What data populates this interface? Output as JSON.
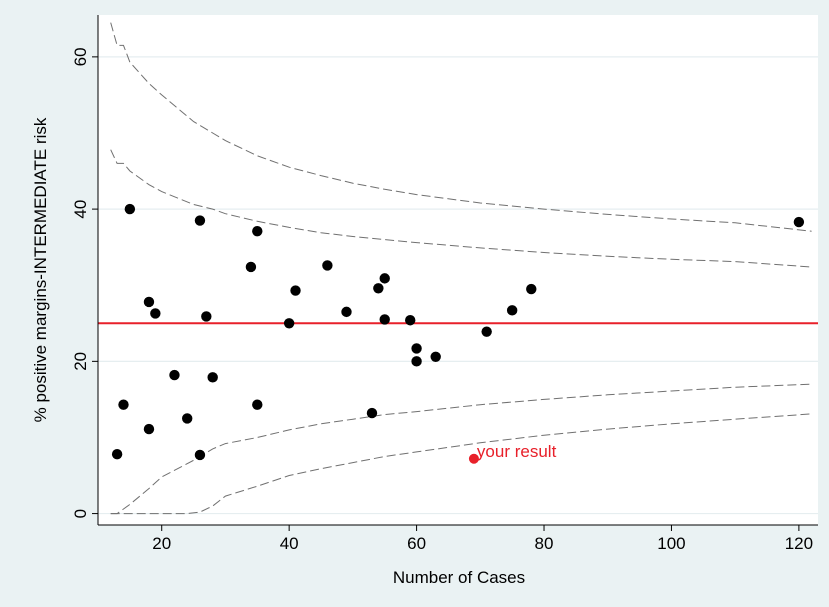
{
  "chart_data": {
    "type": "scatter",
    "xlabel": "Number of Cases",
    "ylabel": "% positive margins-INTERMEDIATE risk",
    "xlim": [
      10,
      123
    ],
    "ylim": [
      -1.5,
      65.5
    ],
    "x_ticks": [
      20,
      40,
      60,
      80,
      100,
      120
    ],
    "y_ticks": [
      0,
      20,
      40,
      60
    ],
    "grid": true,
    "reference_line": {
      "y": 25,
      "color": "#e8202a"
    },
    "points": [
      {
        "x": 13,
        "y": 7.8
      },
      {
        "x": 14,
        "y": 14.3
      },
      {
        "x": 15,
        "y": 40.0
      },
      {
        "x": 18,
        "y": 27.8
      },
      {
        "x": 18,
        "y": 11.1
      },
      {
        "x": 19,
        "y": 26.3
      },
      {
        "x": 22,
        "y": 18.2
      },
      {
        "x": 24,
        "y": 12.5
      },
      {
        "x": 26,
        "y": 38.5
      },
      {
        "x": 26,
        "y": 7.7
      },
      {
        "x": 27,
        "y": 25.9
      },
      {
        "x": 28,
        "y": 17.9
      },
      {
        "x": 34,
        "y": 32.4
      },
      {
        "x": 35,
        "y": 37.1
      },
      {
        "x": 35,
        "y": 14.3
      },
      {
        "x": 40,
        "y": 25.0
      },
      {
        "x": 41,
        "y": 29.3
      },
      {
        "x": 46,
        "y": 32.6
      },
      {
        "x": 49,
        "y": 26.5
      },
      {
        "x": 53,
        "y": 13.2
      },
      {
        "x": 54,
        "y": 29.6
      },
      {
        "x": 55,
        "y": 30.9
      },
      {
        "x": 55,
        "y": 25.5
      },
      {
        "x": 59,
        "y": 25.4
      },
      {
        "x": 60,
        "y": 21.7
      },
      {
        "x": 60,
        "y": 20.0
      },
      {
        "x": 63,
        "y": 20.6
      },
      {
        "x": 71,
        "y": 23.9
      },
      {
        "x": 75,
        "y": 26.7
      },
      {
        "x": 78,
        "y": 29.5
      },
      {
        "x": 120,
        "y": 38.3
      }
    ],
    "highlight": {
      "x": 69,
      "y": 7.2,
      "label": "your result",
      "color": "#e8202a"
    },
    "limit_curves": [
      {
        "x": [
          12,
          13,
          14,
          15,
          18,
          20,
          25,
          28,
          30,
          35,
          40,
          45,
          50,
          55,
          60,
          70,
          80,
          90,
          100,
          110,
          122
        ],
        "y": [
          64.5,
          61.5,
          61.5,
          59.3,
          56.5,
          55.0,
          51.5,
          50.0,
          49.0,
          47.0,
          45.5,
          44.4,
          43.4,
          42.6,
          41.9,
          40.8,
          40.0,
          39.3,
          38.7,
          38.2,
          37.1
        ]
      },
      {
        "x": [
          12,
          13,
          14,
          15,
          18,
          20,
          25,
          28,
          30,
          35,
          40,
          45,
          50,
          55,
          60,
          70,
          80,
          90,
          100,
          110,
          122
        ],
        "y": [
          47.8,
          46.0,
          46.0,
          45.0,
          43.2,
          42.3,
          40.6,
          40.0,
          39.4,
          38.4,
          37.6,
          36.9,
          36.4,
          36.0,
          35.6,
          34.9,
          34.3,
          33.8,
          33.4,
          33.1,
          32.4
        ]
      },
      {
        "x": [
          12,
          13,
          14,
          15,
          18,
          20,
          25,
          28,
          30,
          35,
          40,
          45,
          50,
          55,
          60,
          70,
          80,
          90,
          100,
          110,
          122
        ],
        "y": [
          0.0,
          0.0,
          0.6,
          1.2,
          3.3,
          4.8,
          7.0,
          8.5,
          9.2,
          10.0,
          11.0,
          11.8,
          12.4,
          13.0,
          13.4,
          14.3,
          15.0,
          15.6,
          16.1,
          16.6,
          17.0
        ]
      },
      {
        "x": [
          12,
          15,
          18,
          20,
          22,
          24,
          26,
          28,
          30,
          35,
          40,
          45,
          50,
          55,
          60,
          70,
          80,
          90,
          100,
          110,
          122
        ],
        "y": [
          0.0,
          0.0,
          0.0,
          0.0,
          0.0,
          0.0,
          0.2,
          1.0,
          2.3,
          3.6,
          5.0,
          5.9,
          6.7,
          7.5,
          8.1,
          9.3,
          10.3,
          11.1,
          11.8,
          12.4,
          13.1
        ]
      }
    ]
  }
}
